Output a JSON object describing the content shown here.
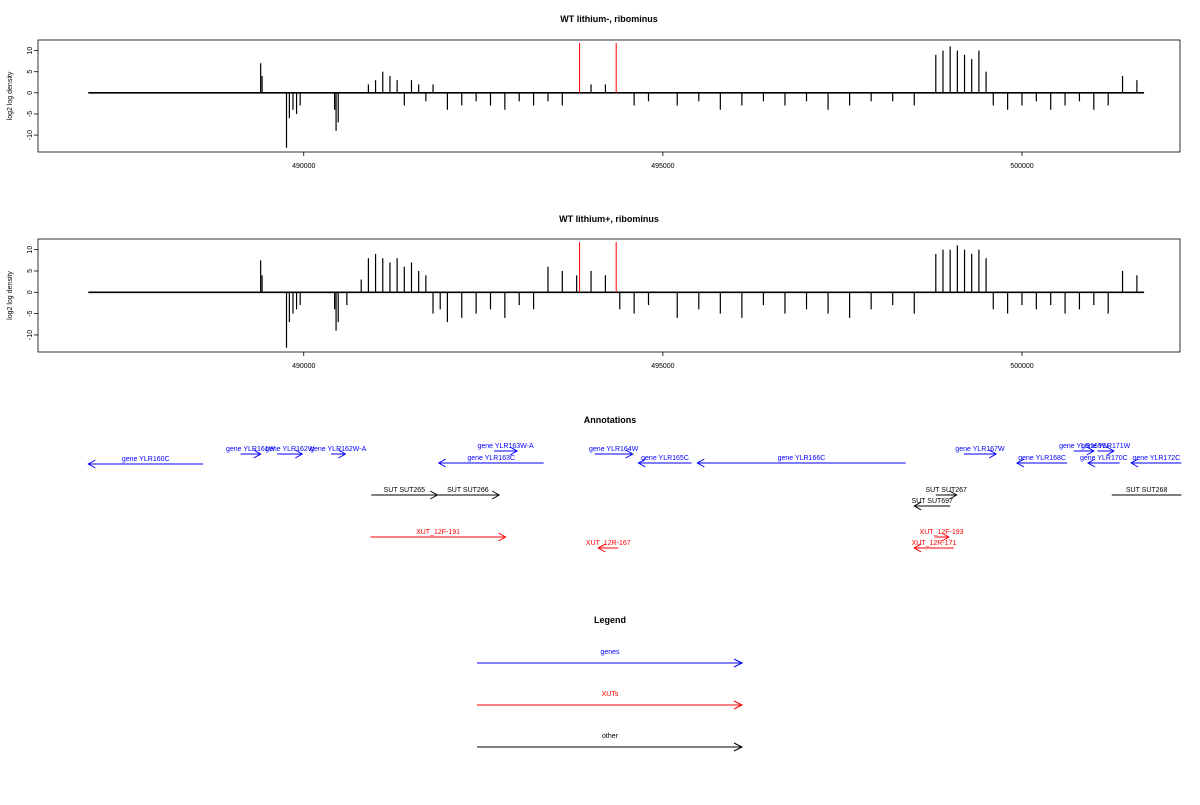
{
  "chart_data": [
    {
      "type": "bar",
      "title": "WT lithium-, ribominus",
      "xlabel": "",
      "ylabel": "log2 log density",
      "xlim": [
        486300,
        502200
      ],
      "ylim": [
        -14,
        12.5
      ],
      "xticks": [
        490000,
        495000,
        500000
      ],
      "xtick_labels": [
        "490000",
        "495000",
        "500000"
      ],
      "yticks": [
        10,
        5,
        0,
        -5,
        -10
      ],
      "ytick_labels": [
        "10",
        "5",
        "0",
        "-5",
        "-10"
      ],
      "baseline_range": [
        487000,
        501700
      ],
      "markers": [
        493840,
        494350
      ],
      "marker_color": "#ff0000",
      "grid": false,
      "series": [
        {
          "color": "#000000",
          "x": [
            489400,
            489420,
            489760,
            489800,
            489850,
            489900,
            489950,
            490430,
            490450,
            490480,
            490900,
            491000,
            491100,
            491200,
            491300,
            491400,
            491500,
            491600,
            491700,
            491800,
            492000,
            492200,
            492400,
            492600,
            492800,
            493000,
            493200,
            493400,
            493600,
            494000,
            494200,
            494600,
            494800,
            495200,
            495500,
            495800,
            496100,
            496400,
            496700,
            497000,
            497300,
            497600,
            497900,
            498200,
            498500,
            498800,
            498900,
            499000,
            499100,
            499200,
            499300,
            499400,
            499500,
            499600,
            499800,
            500000,
            500200,
            500400,
            500600,
            500800,
            501000,
            501200,
            501400,
            501600
          ],
          "values": [
            7,
            4,
            -13,
            -6,
            -4,
            -5,
            -3,
            -4,
            -9,
            -7,
            2,
            3,
            5,
            4,
            3,
            -3,
            3,
            2,
            -2,
            2,
            -4,
            -3,
            -2,
            -3,
            -4,
            -2,
            -3,
            -2,
            -3,
            2,
            2,
            -3,
            -2,
            -3,
            -2,
            -4,
            -3,
            -2,
            -3,
            -2,
            -4,
            -3,
            -2,
            -2,
            -3,
            9,
            10,
            11,
            10,
            9,
            8,
            10,
            5,
            -3,
            -4,
            -3,
            -2,
            -4,
            -3,
            -2,
            -4,
            -3,
            4,
            3
          ]
        }
      ]
    },
    {
      "type": "bar",
      "title": "WT lithium+, ribominus",
      "xlabel": "",
      "ylabel": "log2 log density",
      "xlim": [
        486300,
        502200
      ],
      "ylim": [
        -14,
        12.5
      ],
      "xticks": [
        490000,
        495000,
        500000
      ],
      "xtick_labels": [
        "490000",
        "495000",
        "500000"
      ],
      "yticks": [
        10,
        5,
        0,
        -5,
        -10
      ],
      "ytick_labels": [
        "10",
        "5",
        "0",
        "-5",
        "-10"
      ],
      "baseline_range": [
        487000,
        501700
      ],
      "markers": [
        493840,
        494350
      ],
      "marker_color": "#ff0000",
      "grid": false,
      "series": [
        {
          "color": "#000000",
          "x": [
            489400,
            489420,
            489760,
            489800,
            489850,
            489900,
            489950,
            490430,
            490450,
            490480,
            490600,
            490800,
            490900,
            491000,
            491100,
            491200,
            491300,
            491400,
            491500,
            491600,
            491700,
            491800,
            491900,
            492000,
            492200,
            492400,
            492600,
            492800,
            493000,
            493200,
            493400,
            493600,
            493800,
            494000,
            494200,
            494400,
            494600,
            494800,
            495200,
            495500,
            495800,
            496100,
            496400,
            496700,
            497000,
            497300,
            497600,
            497900,
            498200,
            498500,
            498800,
            498900,
            499000,
            499100,
            499200,
            499300,
            499400,
            499500,
            499600,
            499800,
            500000,
            500200,
            500400,
            500600,
            500800,
            501000,
            501200,
            501400,
            501600
          ],
          "values": [
            7.5,
            4,
            -13,
            -7,
            -5,
            -4,
            -3,
            -4,
            -9,
            -7,
            -3,
            3,
            8,
            9,
            8,
            7,
            8,
            6,
            7,
            5,
            4,
            -5,
            -4,
            -7,
            -6,
            -5,
            -4,
            -6,
            -3,
            -4,
            6,
            5,
            4,
            5,
            4,
            -4,
            -5,
            -3,
            -6,
            -4,
            -5,
            -6,
            -3,
            -5,
            -4,
            -5,
            -6,
            -4,
            -3,
            -5,
            9,
            10,
            10,
            11,
            10,
            9,
            10,
            8,
            -4,
            -5,
            -3,
            -4,
            -3,
            -5,
            -4,
            -3,
            -5,
            5,
            4
          ]
        }
      ]
    }
  ],
  "annotations": {
    "title": "Annotations",
    "genes": [
      {
        "label": "gene YLR160C",
        "x0": 487000,
        "x1": 488600,
        "dir": "left"
      },
      {
        "label": "gene YLR161W",
        "x0": 489120,
        "x1": 489400,
        "dir": "right"
      },
      {
        "label": "gene YLR162W",
        "x0": 489630,
        "x1": 489980,
        "dir": "right"
      },
      {
        "label": "gene YLR162W-A",
        "x0": 490380,
        "x1": 490580,
        "dir": "right"
      },
      {
        "label": "gene YLR163W-A",
        "x0": 492650,
        "x1": 492970,
        "dir": "right"
      },
      {
        "label": "gene YLR163C",
        "x0": 491880,
        "x1": 493340,
        "dir": "left"
      },
      {
        "label": "gene YLR164W",
        "x0": 494050,
        "x1": 494580,
        "dir": "right"
      },
      {
        "label": "gene YLR165C",
        "x0": 494660,
        "x1": 495400,
        "dir": "left"
      },
      {
        "label": "gene YLR166C",
        "x0": 495480,
        "x1": 498380,
        "dir": "left"
      },
      {
        "label": "gene YLR167W",
        "x0": 499190,
        "x1": 499640,
        "dir": "right"
      },
      {
        "label": "gene YLR168C",
        "x0": 499930,
        "x1": 500630,
        "dir": "left"
      },
      {
        "label": "gene YLR169W",
        "x0": 500720,
        "x1": 501000,
        "dir": "right"
      },
      {
        "label": "gene YLR171W",
        "x0": 501050,
        "x1": 501280,
        "dir": "right"
      },
      {
        "label": "gene YLR170C",
        "x0": 500920,
        "x1": 501360,
        "dir": "left"
      },
      {
        "label": "gene YLR172C",
        "x0": 501520,
        "x1": 502220,
        "dir": "left"
      }
    ],
    "suts": [
      {
        "label": "SUT SUT265",
        "x0": 490940,
        "x1": 491860,
        "dir": "right"
      },
      {
        "label": "SUT SUT266",
        "x0": 491850,
        "x1": 492720,
        "dir": "right"
      },
      {
        "label": "SUT SUT267",
        "x0": 498800,
        "x1": 499090,
        "dir": "right"
      },
      {
        "label": "SUT SUT697",
        "x0": 498500,
        "x1": 499000,
        "dir": "left"
      },
      {
        "label": "SUT SUT268",
        "x0": 501250,
        "x1": 502220,
        "dir": "none"
      }
    ],
    "xuts": [
      {
        "label": "XUT_12F-191",
        "x0": 490930,
        "x1": 492810,
        "dir": "right"
      },
      {
        "label": "XUT_12R-167",
        "x0": 494100,
        "x1": 494380,
        "dir": "left"
      },
      {
        "label": "XUT_12F-193",
        "x0": 498780,
        "x1": 498980,
        "dir": "right"
      },
      {
        "label": "XUT_12R-171",
        "x0": 498500,
        "x1": 499050,
        "dir": "left"
      }
    ]
  },
  "legend": {
    "title": "Legend",
    "items": [
      {
        "label": "genes",
        "color": "#0000ff"
      },
      {
        "label": "XUTs",
        "color": "#ff0000"
      },
      {
        "label": "other",
        "color": "#000000"
      }
    ]
  }
}
